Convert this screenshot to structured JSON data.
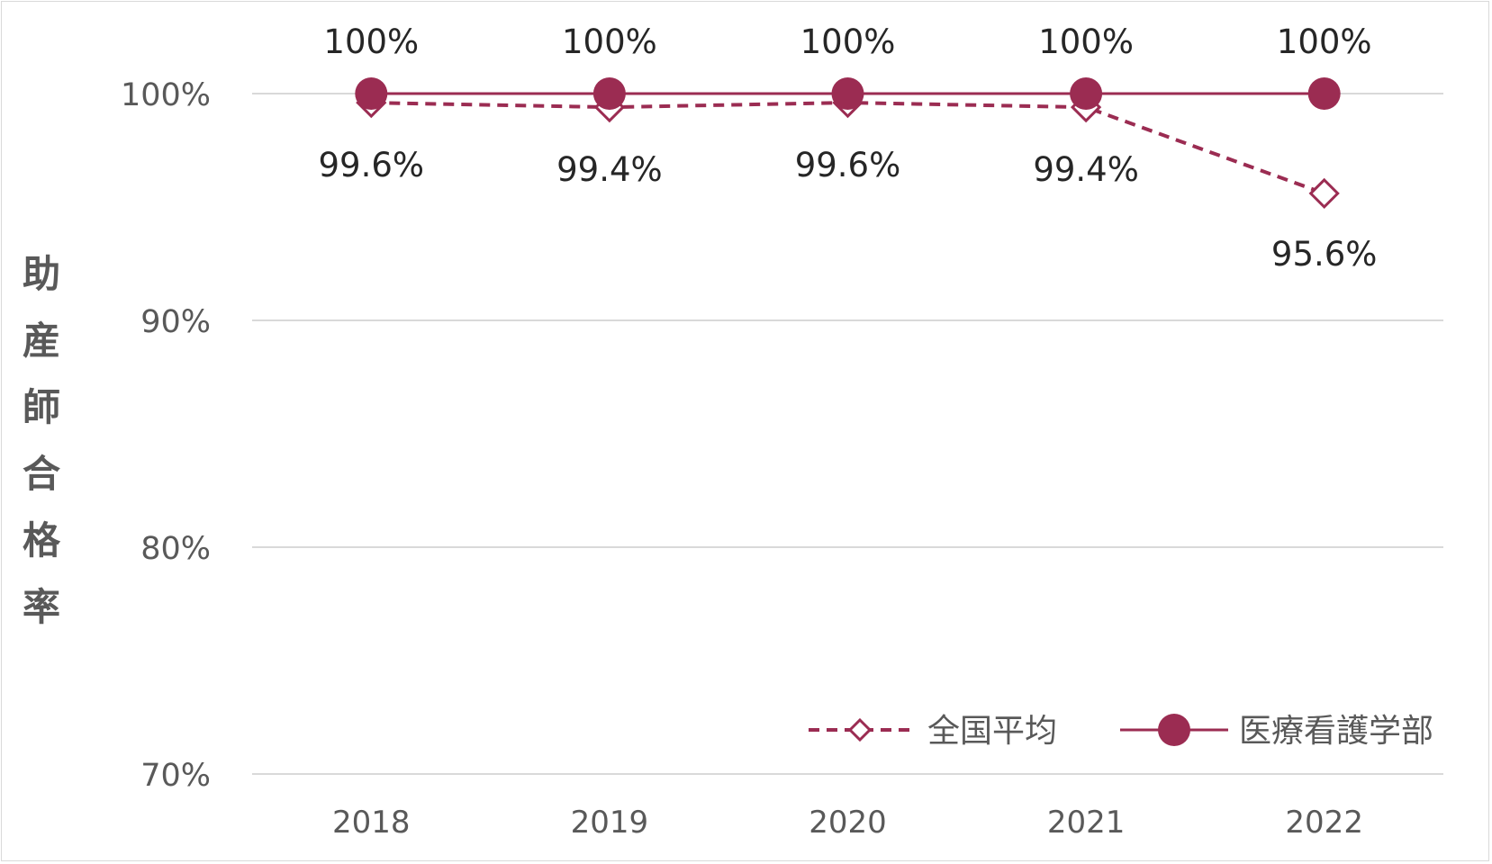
{
  "chart_data": {
    "type": "line",
    "title": "",
    "xlabel": "",
    "ylabel": "助産師合格率",
    "categories": [
      "2018",
      "2019",
      "2020",
      "2021",
      "2022"
    ],
    "yticks": [
      "70%",
      "80%",
      "90%",
      "100%"
    ],
    "ylim": [
      70,
      100
    ],
    "grid": true,
    "legend_position": "bottom-right",
    "series": [
      {
        "name": "全国平均",
        "values": [
          99.6,
          99.4,
          99.6,
          99.4,
          95.6
        ],
        "labels": [
          "99.6%",
          "99.4%",
          "99.6%",
          "99.4%",
          "95.6%"
        ],
        "style": "dashed",
        "marker": "diamond-open",
        "color": "#9b2c52"
      },
      {
        "name": "医療看護学部",
        "values": [
          100,
          100,
          100,
          100,
          100
        ],
        "labels": [
          "100%",
          "100%",
          "100%",
          "100%",
          "100%"
        ],
        "style": "solid",
        "marker": "circle-filled",
        "color": "#9b2c52"
      }
    ]
  }
}
